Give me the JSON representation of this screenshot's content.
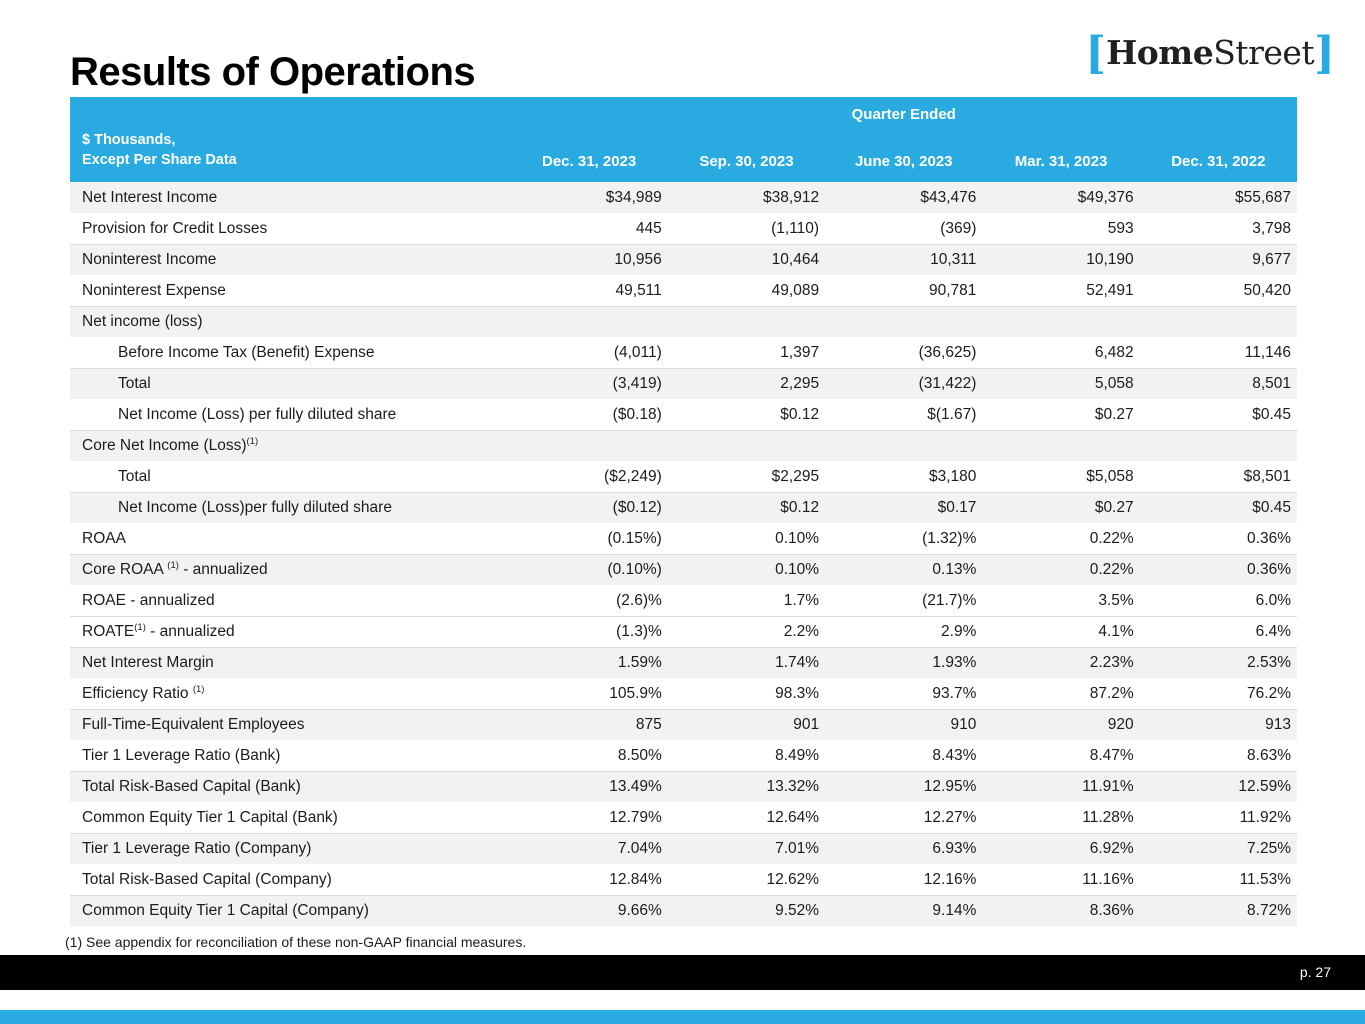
{
  "slide": {
    "title": "Results of Operations",
    "footnote": "(1) See appendix for reconciliation of these non-GAAP financial measures.",
    "page_number": "p. 27"
  },
  "logo": {
    "bracket_left": "[",
    "part1": "Home",
    "part2": "Street",
    "bracket_right": "]"
  },
  "colors": {
    "accent_cyan": "#29ABE2",
    "row_shade": "#F2F2F2",
    "footer_black": "#000000",
    "logo_text": "#231F20"
  },
  "table": {
    "group_header": "Quarter Ended",
    "row_header_line1": "$ Thousands,",
    "row_header_line2": "Except Per Share Data",
    "columns": [
      "Dec. 31, 2023",
      "Sep. 30, 2023",
      "June 30, 2023",
      "Mar. 31, 2023",
      "Dec. 31, 2022"
    ],
    "rows": [
      {
        "label": "Net Interest Income",
        "values": [
          "$34,989",
          "$38,912",
          "$43,476",
          "$49,376",
          "$55,687"
        ],
        "shaded": true
      },
      {
        "label": "Provision for Credit Losses",
        "values": [
          "445",
          "(1,110)",
          "(369)",
          "593",
          "3,798"
        ],
        "shaded": false
      },
      {
        "label": "Noninterest Income",
        "values": [
          "10,956",
          "10,464",
          "10,311",
          "10,190",
          "9,677"
        ],
        "shaded": true
      },
      {
        "label": "Noninterest Expense",
        "values": [
          "49,511",
          "49,089",
          "90,781",
          "52,491",
          "50,420"
        ],
        "shaded": false
      },
      {
        "label": "Net income (loss)",
        "values": [
          "",
          "",
          "",
          "",
          ""
        ],
        "section": true,
        "shaded": true
      },
      {
        "label": "Before Income Tax (Benefit) Expense",
        "values": [
          "(4,011)",
          "1,397",
          "(36,625)",
          "6,482",
          "11,146"
        ],
        "indent": true,
        "shaded": false
      },
      {
        "label": "Total",
        "values": [
          "(3,419)",
          "2,295",
          "(31,422)",
          "5,058",
          "8,501"
        ],
        "indent": true,
        "shaded": true
      },
      {
        "label": "Net Income (Loss) per fully diluted share",
        "values": [
          "($0.18)",
          "$0.12",
          "$(1.67)",
          "$0.27",
          "$0.45"
        ],
        "indent": true,
        "shaded": false
      },
      {
        "label": "Core Net Income (Loss)",
        "sup": "(1)",
        "values": [
          "",
          "",
          "",
          "",
          ""
        ],
        "section": true,
        "shaded": true
      },
      {
        "label": "Total",
        "values": [
          "($2,249)",
          "$2,295",
          "$3,180",
          "$5,058",
          "$8,501"
        ],
        "indent": true,
        "shaded": false
      },
      {
        "label": "Net Income (Loss)per fully diluted share",
        "values": [
          "($0.12)",
          "$0.12",
          "$0.17",
          "$0.27",
          "$0.45"
        ],
        "indent": true,
        "shaded": true
      },
      {
        "label": "ROAA",
        "values": [
          "(0.15%)",
          "0.10%",
          "(1.32)%",
          "0.22%",
          "0.36%"
        ],
        "shaded": false
      },
      {
        "label": "Core ROAA ",
        "sup": "(1)",
        "label_after": " - annualized",
        "values": [
          "(0.10%)",
          "0.10%",
          "0.13%",
          "0.22%",
          "0.36%"
        ],
        "shaded": true
      },
      {
        "label": "ROAE - annualized",
        "values": [
          "(2.6)%",
          "1.7%",
          "(21.7)%",
          "3.5%",
          "6.0%"
        ],
        "shaded": false
      },
      {
        "label": "ROATE",
        "sup": "(1)",
        "label_after": " - annualized",
        "values": [
          "(1.3)%",
          "2.2%",
          "2.9%",
          "4.1%",
          "6.4%"
        ],
        "shaded": false
      },
      {
        "label": "Net Interest Margin",
        "values": [
          "1.59%",
          "1.74%",
          "1.93%",
          "2.23%",
          "2.53%"
        ],
        "shaded": true
      },
      {
        "label": "Efficiency Ratio ",
        "sup": "(1)",
        "values": [
          "105.9%",
          "98.3%",
          "93.7%",
          "87.2%",
          "76.2%"
        ],
        "shaded": false
      },
      {
        "label": "Full-Time-Equivalent Employees",
        "values": [
          "875",
          "901",
          "910",
          "920",
          "913"
        ],
        "shaded": true
      },
      {
        "label": "Tier 1 Leverage Ratio (Bank)",
        "values": [
          "8.50%",
          "8.49%",
          "8.43%",
          "8.47%",
          "8.63%"
        ],
        "shaded": false
      },
      {
        "label": "Total Risk-Based Capital (Bank)",
        "values": [
          "13.49%",
          "13.32%",
          "12.95%",
          "11.91%",
          "12.59%"
        ],
        "shaded": true
      },
      {
        "label": "Common Equity Tier 1 Capital (Bank)",
        "values": [
          "12.79%",
          "12.64%",
          "12.27%",
          "11.28%",
          "11.92%"
        ],
        "shaded": false
      },
      {
        "label": "Tier 1 Leverage Ratio (Company)",
        "values": [
          "7.04%",
          "7.01%",
          "6.93%",
          "6.92%",
          "7.25%"
        ],
        "shaded": true
      },
      {
        "label": "Total Risk-Based Capital (Company)",
        "values": [
          "12.84%",
          "12.62%",
          "12.16%",
          "11.16%",
          "11.53%"
        ],
        "shaded": false
      },
      {
        "label": "Common Equity Tier 1 Capital (Company)",
        "values": [
          "9.66%",
          "9.52%",
          "9.14%",
          "8.36%",
          "8.72%"
        ],
        "shaded": true
      }
    ]
  }
}
